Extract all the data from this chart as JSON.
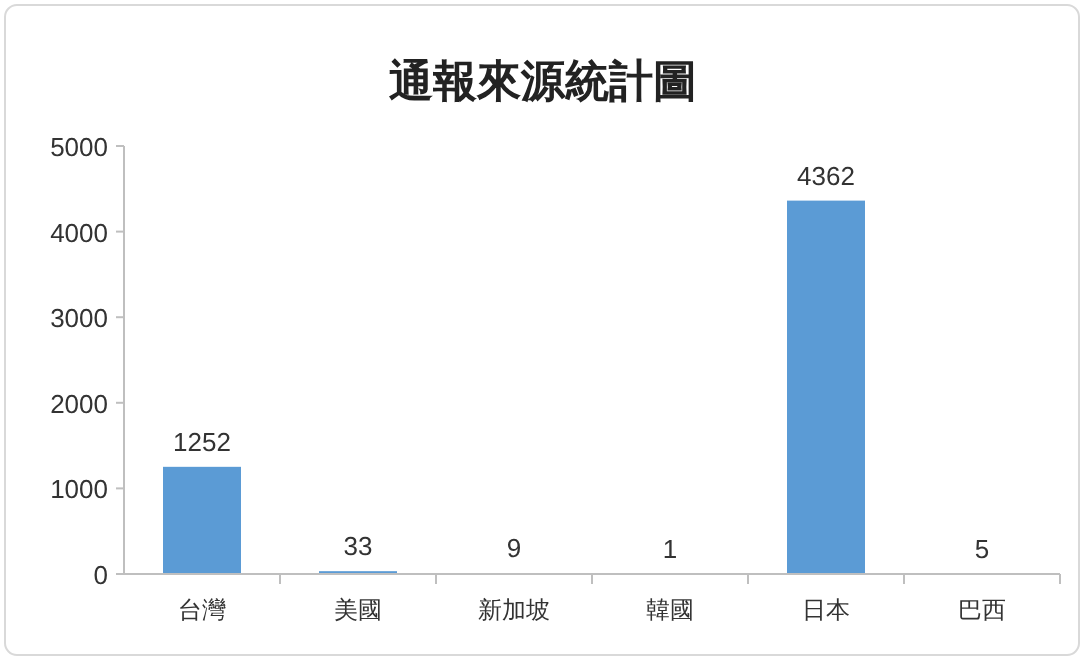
{
  "chart_data": {
    "type": "bar",
    "title": "通報來源統計圖",
    "categories": [
      "台灣",
      "美國",
      "新加坡",
      "韓國",
      "日本",
      "巴西"
    ],
    "values": [
      1252,
      33,
      9,
      1,
      4362,
      5
    ],
    "color": "#5b9bd5",
    "ylim": [
      0,
      5000
    ],
    "yticks": [
      0,
      1000,
      2000,
      3000,
      4000,
      5000
    ],
    "data_labels": true,
    "grid": false
  }
}
